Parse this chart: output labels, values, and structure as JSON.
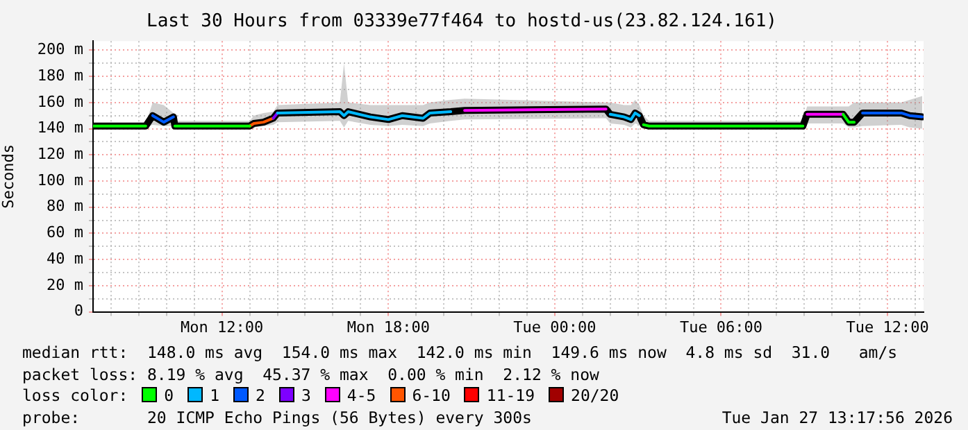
{
  "chart_data": {
    "type": "line",
    "title": "Last 30 Hours from 03339e77f464 to hostd-us(23.82.124.161)",
    "ylabel": "Seconds",
    "xlim": [
      "2026-01-26T07:21",
      "2026-01-27T13:18"
    ],
    "xticks": [
      {
        "value": "2026-01-26T08:00",
        "label": null
      },
      {
        "value": "2026-01-26T09:00",
        "label": null
      },
      {
        "value": "2026-01-26T10:00",
        "label": null
      },
      {
        "value": "2026-01-26T11:00",
        "label": null
      },
      {
        "value": "2026-01-26T12:00",
        "label": "Mon 12:00"
      },
      {
        "value": "2026-01-26T13:00",
        "label": null
      },
      {
        "value": "2026-01-26T14:00",
        "label": null
      },
      {
        "value": "2026-01-26T15:00",
        "label": null
      },
      {
        "value": "2026-01-26T16:00",
        "label": null
      },
      {
        "value": "2026-01-26T17:00",
        "label": null
      },
      {
        "value": "2026-01-26T18:00",
        "label": "Mon 18:00"
      },
      {
        "value": "2026-01-26T19:00",
        "label": null
      },
      {
        "value": "2026-01-26T20:00",
        "label": null
      },
      {
        "value": "2026-01-26T21:00",
        "label": null
      },
      {
        "value": "2026-01-26T22:00",
        "label": null
      },
      {
        "value": "2026-01-26T23:00",
        "label": null
      },
      {
        "value": "2026-01-27T00:00",
        "label": "Tue 00:00"
      },
      {
        "value": "2026-01-27T01:00",
        "label": null
      },
      {
        "value": "2026-01-27T02:00",
        "label": null
      },
      {
        "value": "2026-01-27T03:00",
        "label": null
      },
      {
        "value": "2026-01-27T04:00",
        "label": null
      },
      {
        "value": "2026-01-27T05:00",
        "label": null
      },
      {
        "value": "2026-01-27T06:00",
        "label": "Tue 06:00"
      },
      {
        "value": "2026-01-27T07:00",
        "label": null
      },
      {
        "value": "2026-01-27T08:00",
        "label": null
      },
      {
        "value": "2026-01-27T09:00",
        "label": null
      },
      {
        "value": "2026-01-27T10:00",
        "label": null
      },
      {
        "value": "2026-01-27T11:00",
        "label": null
      },
      {
        "value": "2026-01-27T12:00",
        "label": "Tue 12:00"
      },
      {
        "value": "2026-01-27T13:00",
        "label": null
      }
    ],
    "ylim": [
      0,
      207
    ],
    "yticks": [
      0,
      {
        "value": 10,
        "label": null
      },
      {
        "value": 20,
        "label": "20 m"
      },
      {
        "value": 30,
        "label": null
      },
      {
        "value": 40,
        "label": "40 m"
      },
      {
        "value": 50,
        "label": null
      },
      {
        "value": 60,
        "label": "60 m"
      },
      {
        "value": 70,
        "label": null
      },
      {
        "value": 80,
        "label": "80 m"
      },
      {
        "value": 90,
        "label": null
      },
      {
        "value": 100,
        "label": "100 m"
      },
      {
        "value": 110,
        "label": null
      },
      {
        "value": 120,
        "label": "120 m"
      },
      {
        "value": 130,
        "label": null
      },
      {
        "value": 140,
        "label": "140 m"
      },
      {
        "value": 150,
        "label": null
      },
      {
        "value": 160,
        "label": "160 m"
      },
      {
        "value": 170,
        "label": null
      },
      {
        "value": 180,
        "label": "180 m"
      },
      {
        "value": 190,
        "label": null
      },
      {
        "value": 200,
        "label": "200 m"
      }
    ],
    "grid": true,
    "legend": "bottom",
    "legend_title": "loss color:",
    "marker": "none",
    "line_style": "solid",
    "series": [
      {
        "color": "#000000",
        "x": [
          "2026-01-26T07:21",
          "2026-01-26T09:15",
          "2026-01-26T09:30",
          "2026-01-26T09:54",
          "2026-01-26T10:15",
          "2026-01-26T10:18",
          "2026-01-26T13:00",
          "2026-01-26T13:09",
          "2026-01-26T13:30",
          "2026-01-26T13:51",
          "2026-01-26T14:00",
          "2026-01-26T16:15",
          "2026-01-26T16:24",
          "2026-01-26T16:33",
          "2026-01-26T17:21",
          "2026-01-26T18:00",
          "2026-01-26T18:30",
          "2026-01-26T19:15",
          "2026-01-26T19:30",
          "2026-01-26T20:15",
          "2026-01-26T20:45",
          "2026-01-27T01:51",
          "2026-01-27T02:00",
          "2026-01-27T02:30",
          "2026-01-27T02:45",
          "2026-01-27T02:54",
          "2026-01-27T03:03",
          "2026-01-27T03:12",
          "2026-01-27T03:24",
          "2026-01-27T08:57",
          "2026-01-27T09:06",
          "2026-01-27T10:24",
          "2026-01-27T10:36",
          "2026-01-27T10:48",
          "2026-01-27T11:06",
          "2026-01-27T12:30",
          "2026-01-27T12:48",
          "2026-01-27T13:15"
        ],
        "values": [
          142,
          142,
          150,
          145,
          149,
          142,
          142,
          144,
          145,
          148,
          152,
          153,
          150,
          153,
          149,
          147,
          150,
          148,
          152,
          153,
          154,
          155,
          151,
          149,
          147,
          152,
          150,
          143,
          142,
          142,
          151,
          151,
          145,
          145,
          152,
          152,
          150,
          149
        ],
        "lower": [
          141,
          141,
          143,
          142,
          142,
          141,
          140,
          141,
          142,
          143,
          145,
          146,
          141,
          146,
          143,
          142,
          143,
          142,
          144,
          146,
          147,
          148,
          144,
          143,
          141,
          144,
          143,
          140,
          140,
          140,
          144,
          144,
          141,
          141,
          142,
          143,
          141,
          140
        ],
        "upper": [
          144,
          144,
          160,
          158,
          152,
          146,
          146,
          150,
          152,
          153,
          158,
          160,
          190,
          160,
          158,
          158,
          158,
          158,
          160,
          162,
          163,
          160,
          160,
          158,
          158,
          162,
          158,
          150,
          146,
          146,
          157,
          157,
          157,
          160,
          160,
          160,
          162,
          165
        ]
      },
      {
        "name": "0",
        "color": "#00ff00",
        "x": [
          "2026-01-26T07:21",
          "2026-01-26T09:15",
          "2026-01-26T09:18",
          "2026-01-26T10:18",
          "2026-01-26T13:00",
          "2026-01-26T13:06",
          "2026-01-27T03:12",
          "2026-01-27T03:24",
          "2026-01-27T08:57",
          "2026-01-27T09:00",
          "2026-01-27T10:24",
          "2026-01-27T10:36",
          "2026-01-27T10:48"
        ],
        "values": [
          142,
          142,
          null,
          142,
          142,
          null,
          143,
          142,
          142,
          null,
          151,
          145,
          145
        ]
      },
      {
        "name": "1",
        "color": "#00b8ff",
        "x": [
          "2026-01-26T14:00",
          "2026-01-26T16:15",
          "2026-01-26T16:24",
          "2026-01-26T16:33",
          "2026-01-26T17:21",
          "2026-01-26T18:00",
          "2026-01-26T18:30",
          "2026-01-26T19:15",
          "2026-01-26T19:30",
          "2026-01-26T20:15",
          "2026-01-26T20:30",
          "2026-01-27T02:00",
          "2026-01-27T02:30",
          "2026-01-27T02:45",
          "2026-01-27T02:54",
          "2026-01-27T03:03"
        ],
        "values": [
          152,
          153,
          150,
          153,
          149,
          147,
          150,
          148,
          152,
          153,
          null,
          151,
          149,
          147,
          152,
          150
        ]
      },
      {
        "name": "2",
        "color": "#0059ff",
        "x": [
          "2026-01-26T09:30",
          "2026-01-26T09:54",
          "2026-01-26T10:15",
          "2026-01-26T10:18",
          "2026-01-27T11:06",
          "2026-01-27T12:30",
          "2026-01-27T12:48",
          "2026-01-27T13:15"
        ],
        "values": [
          150,
          145,
          149,
          null,
          152,
          152,
          150,
          149
        ]
      },
      {
        "name": "3",
        "color": "#7e00ff",
        "x": [
          "2026-01-26T13:51",
          "2026-01-26T14:00"
        ],
        "values": [
          148,
          152
        ]
      },
      {
        "name": "4-5",
        "color": "#ff00ff",
        "x": [
          "2026-01-26T20:45",
          "2026-01-27T01:51",
          "2026-01-27T02:00",
          "2026-01-27T09:06",
          "2026-01-27T10:24"
        ],
        "values": [
          154,
          155,
          null,
          151,
          151
        ]
      },
      {
        "name": "6-10",
        "color": "#ff5500",
        "x": [
          "2026-01-26T13:00",
          "2026-01-26T13:09",
          "2026-01-26T13:30",
          "2026-01-26T13:51"
        ],
        "values": [
          142,
          144,
          145,
          148
        ]
      },
      {
        "name": "11-19",
        "color": "#ff0000"
      },
      {
        "name": "20/20",
        "color": "#a10000"
      }
    ],
    "annotations": [
      "median rtt:  148.0 ms avg  154.0 ms max  142.0 ms min  149.6 ms now  4.8 ms sd  31.0   am/s",
      "packet loss: 8.19 % avg  45.37 % max  0.00 % min  2.12 % now",
      "probe:       20 ICMP Echo Pings (56 Bytes) every 300s",
      "Tue Jan 27 13:17:56 2026"
    ]
  }
}
